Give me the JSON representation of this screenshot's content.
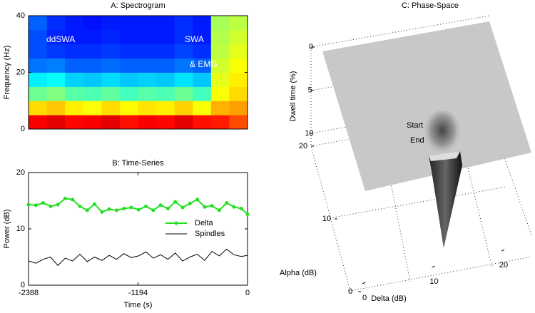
{
  "chart_data": [
    {
      "type": "heatmap",
      "title": "A: Spectrogram",
      "ylabel": "Frequency (Hz)",
      "colormap": "jet",
      "ylim": [
        0,
        40
      ],
      "yticks": [
        0,
        20,
        40
      ],
      "annotations": [
        "ddSWA",
        "SWA",
        "& EMG"
      ],
      "values": [
        [
          0.88,
          0.9,
          0.87,
          0.88,
          0.9,
          0.86,
          0.88,
          0.87,
          0.9,
          0.86,
          0.85,
          0.8
        ],
        [
          0.66,
          0.68,
          0.64,
          0.62,
          0.66,
          0.63,
          0.65,
          0.64,
          0.67,
          0.62,
          0.7,
          0.72
        ],
        [
          0.48,
          0.5,
          0.46,
          0.45,
          0.47,
          0.44,
          0.46,
          0.45,
          0.48,
          0.44,
          0.62,
          0.66
        ],
        [
          0.36,
          0.38,
          0.33,
          0.32,
          0.34,
          0.32,
          0.33,
          0.32,
          0.35,
          0.32,
          0.6,
          0.64
        ],
        [
          0.24,
          0.25,
          0.22,
          0.22,
          0.23,
          0.22,
          0.22,
          0.22,
          0.24,
          0.22,
          0.58,
          0.62
        ],
        [
          0.2,
          0.18,
          0.17,
          0.17,
          0.18,
          0.17,
          0.17,
          0.17,
          0.19,
          0.17,
          0.56,
          0.6
        ],
        [
          0.2,
          0.16,
          0.15,
          0.15,
          0.16,
          0.15,
          0.15,
          0.15,
          0.17,
          0.15,
          0.55,
          0.58
        ],
        [
          0.22,
          0.17,
          0.15,
          0.14,
          0.15,
          0.15,
          0.15,
          0.15,
          0.17,
          0.15,
          0.54,
          0.56
        ]
      ]
    },
    {
      "type": "line",
      "title": "B: Time-Series",
      "xlabel": "Time (s)",
      "ylabel": "Power (dB)",
      "xlim": [
        -2388,
        0
      ],
      "xticks": [
        -2388,
        -1194,
        0
      ],
      "ylim": [
        0,
        20
      ],
      "yticks": [
        0,
        10,
        20
      ],
      "legend": "center right",
      "x": [
        -2388,
        -2308,
        -2228,
        -2148,
        -2068,
        -1988,
        -1908,
        -1828,
        -1748,
        -1668,
        -1588,
        -1508,
        -1428,
        -1348,
        -1268,
        -1188,
        -1108,
        -1028,
        -948,
        -868,
        -788,
        -708,
        -628,
        -548,
        -468,
        -388,
        -308,
        -228,
        -148,
        -68,
        0
      ],
      "series": [
        {
          "name": "Delta",
          "color": "#22e022",
          "marker": "o",
          "values": [
            14.3,
            14.2,
            14.6,
            14.0,
            14.3,
            15.4,
            15.2,
            14.0,
            13.3,
            14.4,
            13.0,
            13.5,
            13.3,
            13.6,
            13.8,
            13.4,
            14.0,
            13.3,
            14.2,
            13.6,
            14.8,
            13.8,
            14.5,
            15.2,
            13.9,
            14.1,
            13.3,
            14.6,
            13.9,
            13.6,
            12.6
          ]
        },
        {
          "name": "Spindles",
          "color": "#000000",
          "values": [
            4.3,
            3.9,
            4.6,
            5.0,
            3.5,
            4.8,
            4.3,
            5.5,
            4.2,
            5.0,
            4.4,
            5.3,
            4.6,
            5.6,
            4.9,
            5.2,
            5.9,
            4.8,
            5.4,
            4.6,
            5.7,
            4.3,
            5.0,
            5.5,
            4.4,
            6.0,
            5.2,
            6.4,
            5.4,
            5.1,
            5.3
          ]
        }
      ]
    },
    {
      "type": "surface3d",
      "title": "C: Phase-Space",
      "xlabel": "Delta (dB)",
      "ylabel": "Alpha (dB)",
      "zlabel": "Dwell time (%)",
      "xlim": [
        0,
        24
      ],
      "xticks": [
        0,
        10,
        20
      ],
      "ylim": [
        0,
        20
      ],
      "yticks": [
        0,
        10,
        20
      ],
      "zlim": [
        0,
        11.5
      ],
      "zticks": [
        0,
        5,
        10
      ],
      "annotations": [
        "Start",
        "End"
      ]
    }
  ]
}
